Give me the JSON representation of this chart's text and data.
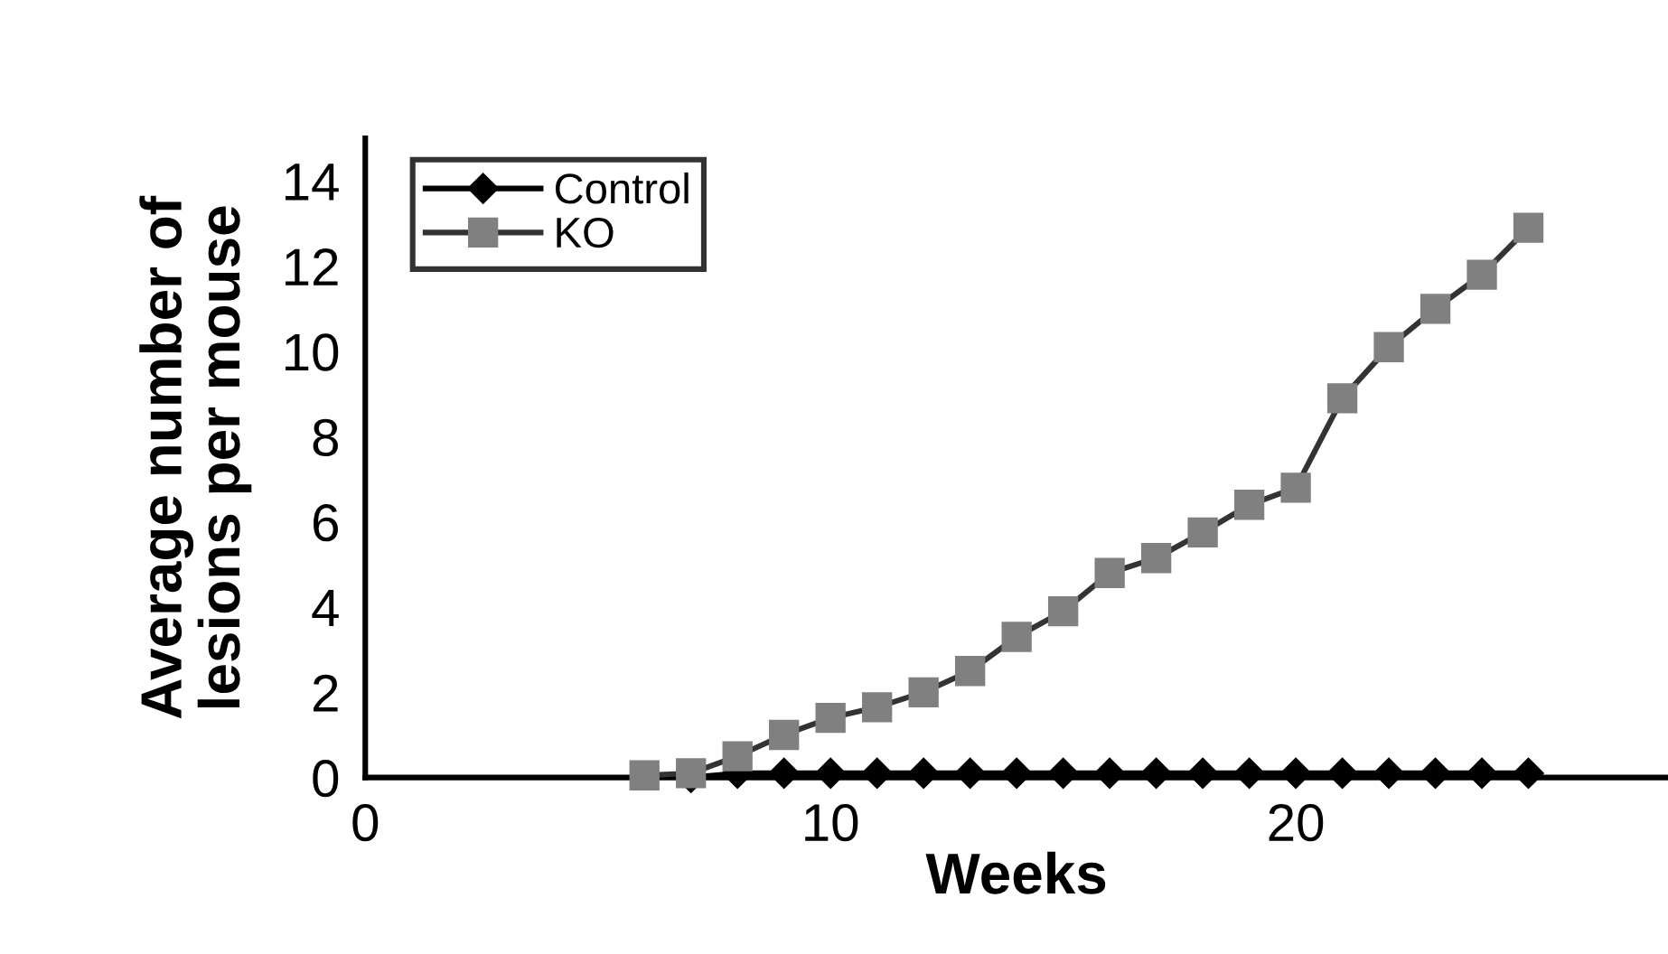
{
  "chart_data": {
    "type": "line",
    "xlabel": "Weeks",
    "ylabel": "Average number of\nlesions per mouse",
    "xlim": [
      0,
      28
    ],
    "xticks": [
      0,
      10,
      20
    ],
    "ylim": [
      0,
      15
    ],
    "yticks": [
      0,
      2,
      4,
      6,
      8,
      10,
      12,
      14
    ],
    "grid": false,
    "legend": "top left",
    "line_style": "solid",
    "series": [
      {
        "name": "Control",
        "color": "#000000",
        "marker": "diamond",
        "x": [
          7,
          8,
          9,
          10,
          11,
          12,
          13,
          14,
          15,
          16,
          17,
          18,
          19,
          20,
          21,
          22,
          23,
          24,
          25
        ],
        "values": [
          0,
          0.1,
          0.1,
          0.1,
          0.1,
          0.1,
          0.1,
          0.1,
          0.1,
          0.1,
          0.1,
          0.1,
          0.1,
          0.1,
          0.1,
          0.1,
          0.1,
          0.1,
          0.1
        ]
      },
      {
        "name": "KO",
        "color": "#808080",
        "marker": "square",
        "x": [
          6,
          7,
          8,
          9,
          10,
          11,
          12,
          13,
          14,
          15,
          16,
          17,
          18,
          19,
          20,
          21,
          22,
          23,
          24,
          25
        ],
        "values": [
          0.05,
          0.1,
          0.5,
          1.0,
          1.4,
          1.65,
          2.0,
          2.5,
          3.3,
          3.9,
          4.8,
          5.15,
          5.75,
          6.4,
          6.8,
          8.9,
          10.1,
          11.0,
          11.8,
          12.9
        ]
      }
    ]
  }
}
